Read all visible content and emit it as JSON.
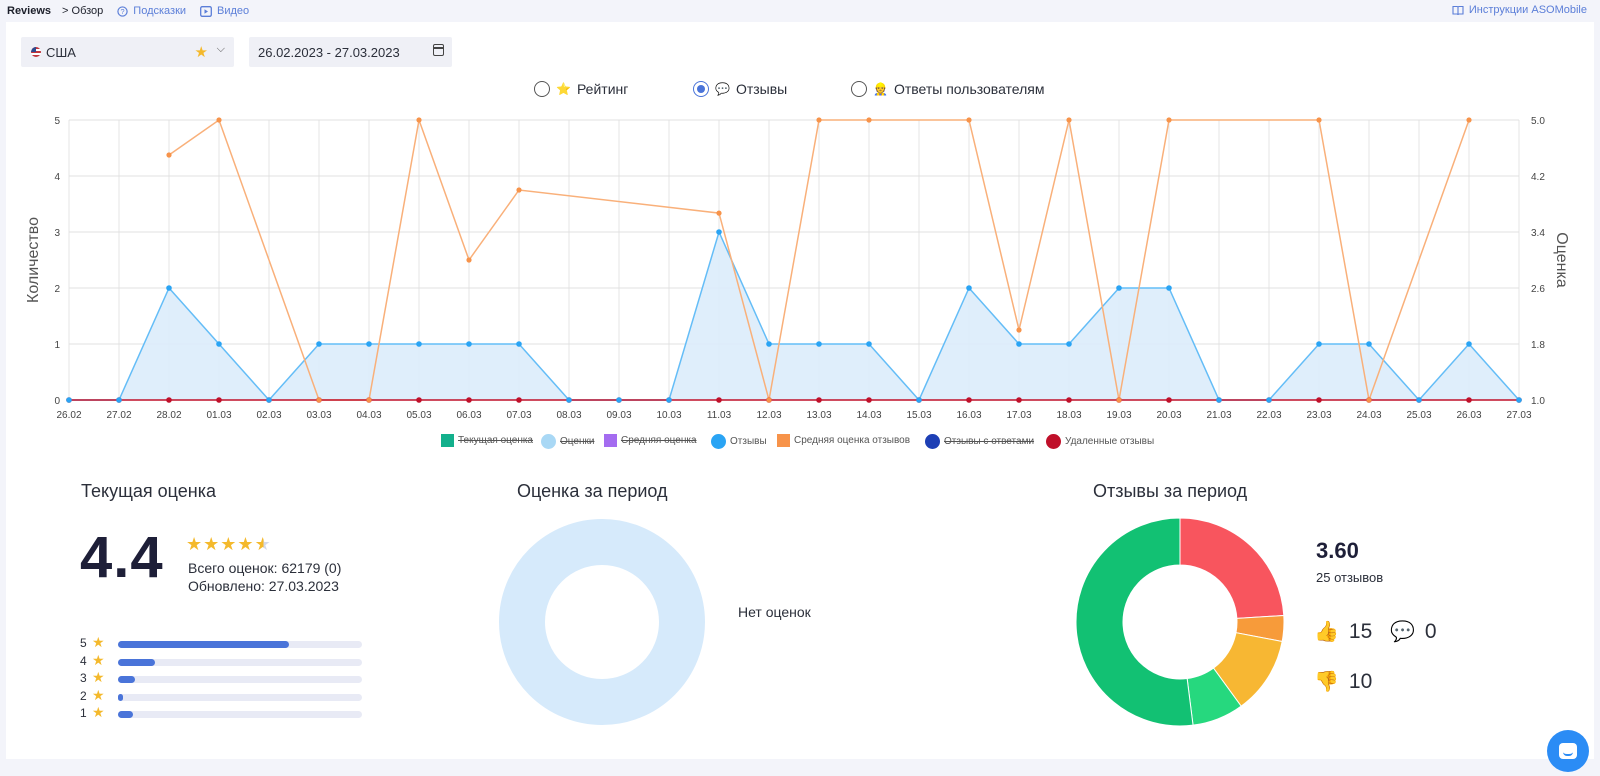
{
  "breadcrumb": {
    "app": "Reviews",
    "page": "> Обзор",
    "hints": "Подсказки",
    "video": "Видео",
    "instructions": "Инструкции ASOMobile"
  },
  "filters": {
    "country": "США",
    "country_icon": "us-flag-icon",
    "date_range": "26.02.2023 - 27.03.2023"
  },
  "mode_radios": [
    {
      "label": "Рейтинг",
      "emoji": "⭐",
      "selected": false
    },
    {
      "label": "Отзывы",
      "emoji": "💬",
      "selected": true
    },
    {
      "label": "Ответы пользователям",
      "emoji": "👷",
      "selected": false
    }
  ],
  "chart_data": {
    "type": "line",
    "ylabel": "Количество",
    "y2label": "Оценка",
    "ylim": [
      0,
      5
    ],
    "y2lim": [
      1.0,
      5.0
    ],
    "y_ticks": [
      "0",
      "1",
      "2",
      "3",
      "4",
      "5"
    ],
    "y2_ticks": [
      "1.0",
      "1.8",
      "2.6",
      "3.4",
      "4.2",
      "5.0"
    ],
    "categories": [
      "26.02",
      "27.02",
      "28.02",
      "01.03",
      "02.03",
      "03.03",
      "04.03",
      "05.03",
      "06.03",
      "07.03",
      "08.03",
      "09.03",
      "10.03",
      "11.03",
      "12.03",
      "13.03",
      "14.03",
      "15.03",
      "16.03",
      "17.03",
      "18.03",
      "19.03",
      "20.03",
      "21.03",
      "22.03",
      "23.03",
      "24.03",
      "25.03",
      "26.03",
      "27.03"
    ],
    "grid": true,
    "series": [
      {
        "name": "Отзывы",
        "axis": "left",
        "color": "#2aa4f4",
        "fill": "#dcecfb",
        "values": [
          0,
          0,
          2,
          1,
          0,
          1,
          1,
          1,
          1,
          1,
          0,
          0,
          0,
          3,
          1,
          1,
          1,
          0,
          2,
          1,
          1,
          2,
          2,
          0,
          0,
          1,
          1,
          0,
          1,
          0
        ]
      },
      {
        "name": "Средняя оценка отзывов",
        "axis": "right",
        "color": "#f9b07a",
        "point_color": "#f7934a",
        "values": [
          null,
          null,
          4.5,
          5.0,
          null,
          1.0,
          1.0,
          5.0,
          3.0,
          4.0,
          null,
          null,
          null,
          3.67,
          1.0,
          5.0,
          5.0,
          null,
          5.0,
          2.0,
          5.0,
          1.0,
          5.0,
          null,
          null,
          5.0,
          1.0,
          null,
          5.0,
          null
        ]
      },
      {
        "name": "Удаленные отзывы",
        "axis": "left",
        "color": "#c0102a",
        "values": [
          0,
          0,
          0,
          0,
          0,
          0,
          0,
          0,
          0,
          0,
          0,
          0,
          0,
          0,
          0,
          0,
          0,
          0,
          0,
          0,
          0,
          0,
          0,
          0,
          0,
          0,
          0,
          0,
          0,
          0
        ]
      }
    ],
    "legend": [
      {
        "name": "Текущая оценка",
        "color": "#13b08c",
        "shape": "square",
        "enabled": false
      },
      {
        "name": "Оценки",
        "color": "#a9d8f5",
        "shape": "circle",
        "enabled": false
      },
      {
        "name": "Средняя оценка",
        "color": "#a46cf0",
        "shape": "square",
        "enabled": false
      },
      {
        "name": "Отзывы",
        "color": "#2aa4f4",
        "shape": "circle",
        "enabled": true
      },
      {
        "name": "Средняя оценка отзывов",
        "color": "#f7934a",
        "shape": "square",
        "enabled": true
      },
      {
        "name": "Отзывы с ответами",
        "color": "#1d3fb5",
        "shape": "circle",
        "enabled": false
      },
      {
        "name": "Удаленные отзывы",
        "color": "#c0102a",
        "shape": "circle",
        "enabled": true
      }
    ]
  },
  "current_rating": {
    "title": "Текущая оценка",
    "value": "4.4",
    "stars": 4.5,
    "total": "Всего оценок: 62179 (0)",
    "updated": "Обновлено: 27.03.2023",
    "distribution": [
      {
        "stars": "5",
        "fraction": 0.7
      },
      {
        "stars": "4",
        "fraction": 0.15
      },
      {
        "stars": "3",
        "fraction": 0.07
      },
      {
        "stars": "2",
        "fraction": 0.02
      },
      {
        "stars": "1",
        "fraction": 0.06
      }
    ]
  },
  "period_rating": {
    "title": "Оценка за период",
    "empty_text": "Нет оценок",
    "ring_color": "#d6eafb"
  },
  "period_reviews": {
    "title": "Отзывы за период",
    "average": "3.60",
    "count_text": "25 отзывов",
    "likes": "15",
    "replies": "0",
    "dislikes": "10",
    "donut": [
      {
        "label": "5",
        "value": 13,
        "color": "#12c173"
      },
      {
        "label": "4",
        "value": 2,
        "color": "#26d87e"
      },
      {
        "label": "3",
        "value": 3,
        "color": "#f7b733"
      },
      {
        "label": "2",
        "value": 1,
        "color": "#f79b3a"
      },
      {
        "label": "1",
        "value": 6,
        "color": "#f8555e"
      }
    ]
  }
}
